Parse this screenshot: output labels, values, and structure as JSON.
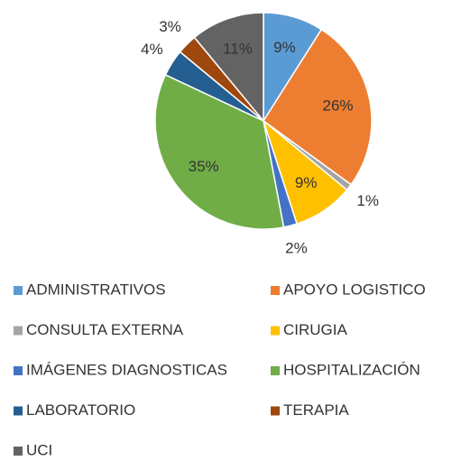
{
  "chart_data": {
    "type": "pie",
    "categories": [
      "ADMINISTRATIVOS",
      "APOYO LOGISTICO",
      "CONSULTA EXTERNA",
      "CIRUGIA",
      "IMÁGENES DIAGNOSTICAS",
      "HOSPITALIZACIÓN",
      "LABORATORIO",
      "TERAPIA",
      "UCI"
    ],
    "values": [
      9,
      26,
      1,
      9,
      2,
      35,
      4,
      3,
      11
    ],
    "value_labels": [
      "9%",
      "26%",
      "1%",
      "9%",
      "2%",
      "35%",
      "4%",
      "3%",
      "11%"
    ],
    "colors": [
      "#5b9bd5",
      "#ed7d31",
      "#a5a5a5",
      "#ffc000",
      "#4472c4",
      "#70ad47",
      "#255e91",
      "#9e480e",
      "#636363"
    ],
    "legend": "bottom"
  }
}
